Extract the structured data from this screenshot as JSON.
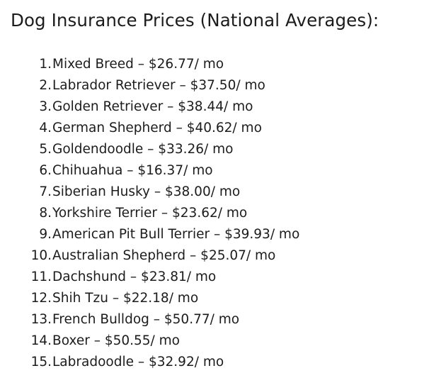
{
  "heading": "Dog Insurance Prices (National Averages):",
  "items": [
    {
      "num": "1.",
      "text": "Mixed Breed – $26.77/ mo"
    },
    {
      "num": "2.",
      "text": "Labrador Retriever – $37.50/ mo"
    },
    {
      "num": "3.",
      "text": "Golden Retriever – $38.44/ mo"
    },
    {
      "num": "4.",
      "text": "German Shepherd – $40.62/ mo"
    },
    {
      "num": "5.",
      "text": "Goldendoodle – $33.26/ mo"
    },
    {
      "num": "6.",
      "text": "Chihuahua – $16.37/ mo"
    },
    {
      "num": "7.",
      "text": "Siberian Husky – $38.00/ mo"
    },
    {
      "num": "8.",
      "text": "Yorkshire Terrier – $23.62/ mo"
    },
    {
      "num": "9.",
      "text": "American Pit Bull Terrier – $39.93/ mo"
    },
    {
      "num": "10.",
      "text": "Australian Shepherd – $25.07/ mo"
    },
    {
      "num": "11.",
      "text": "Dachshund – $23.81/ mo"
    },
    {
      "num": "12.",
      "text": "Shih Tzu – $22.18/ mo"
    },
    {
      "num": "13.",
      "text": "French Bulldog – $50.77/ mo"
    },
    {
      "num": "14.",
      "text": "Boxer – $50.55/ mo"
    },
    {
      "num": "15.",
      "text": "Labradoodle – $32.92/ mo"
    }
  ]
}
